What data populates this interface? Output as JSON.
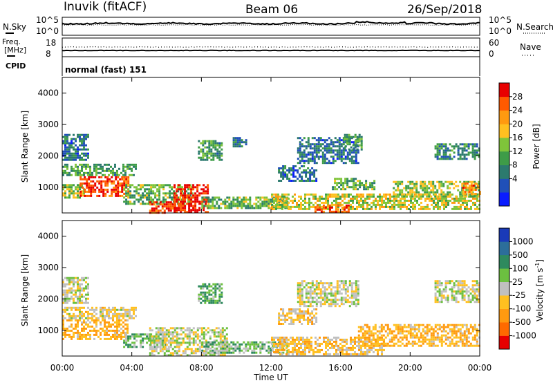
{
  "header": {
    "station": "Inuvik (fitACF)",
    "beam": "Beam 06",
    "date": "26/Sep/2018"
  },
  "top_panel": {
    "left_label": "N.Sky",
    "right_label": "N.Search",
    "left_ticks": [
      "10^5",
      "10^0"
    ],
    "right_ticks": [
      "10^5",
      "10^0"
    ]
  },
  "freq_panel": {
    "left_label_1": "Freq.",
    "left_label_2": "[MHz]",
    "right_label": "Nave",
    "left_ticks": [
      "18",
      "8"
    ],
    "right_ticks": [
      "60",
      "0"
    ],
    "cpid_label": "CPID",
    "cpid_value": "normal (fast) 151"
  },
  "x_axis": {
    "ticks": [
      "00:00",
      "04:00",
      "08:00",
      "12:00",
      "16:00",
      "20:00",
      "00:00"
    ],
    "label": "Time UT"
  },
  "y_axis": {
    "label": "Slant Range [km]",
    "ticks": [
      "4000",
      "3000",
      "2000",
      "1000"
    ]
  },
  "power_colorbar": {
    "label": "Power [dB]",
    "ticks": [
      "28",
      "24",
      "20",
      "16",
      "12",
      "8",
      "4"
    ],
    "colors": [
      "#0a1cff",
      "#2050b8",
      "#2c7a6e",
      "#3e9c48",
      "#7fc43a",
      "#ffc020",
      "#ff9a10",
      "#ff5a00",
      "#e80000"
    ]
  },
  "velocity_colorbar": {
    "label": "Velocity [m s",
    "label_superscript": "-1",
    "label_close": "]",
    "ticks": [
      "1000",
      "500",
      "100",
      "25",
      "-25",
      "-100",
      "-500",
      "-1000"
    ],
    "colors": [
      "#1a3ab8",
      "#2c6e9a",
      "#2e8a5e",
      "#6cc040",
      "#c0c0c0",
      "#ffc020",
      "#ff9a10",
      "#ff6a00",
      "#e80000"
    ]
  },
  "chart_data": [
    {
      "type": "heatmap",
      "title": "Power [dB]",
      "xlabel": "Time UT",
      "ylabel": "Slant Range [km]",
      "xlim": [
        0,
        24
      ],
      "ylim": [
        180,
        4500
      ],
      "clim": [
        0,
        32
      ],
      "echo_regions": [
        {
          "t": [
            0.0,
            1.2
          ],
          "r": [
            700,
            1100
          ],
          "value": 16
        },
        {
          "t": [
            1.0,
            3.8
          ],
          "r": [
            750,
            1350
          ],
          "value": 28
        },
        {
          "t": [
            0.0,
            4.2
          ],
          "r": [
            1400,
            1750
          ],
          "value": 12
        },
        {
          "t": [
            0.0,
            1.5
          ],
          "r": [
            1900,
            2700
          ],
          "value": 8
        },
        {
          "t": [
            3.5,
            7.5
          ],
          "r": [
            500,
            1100
          ],
          "value": 14
        },
        {
          "t": [
            5.0,
            6.5
          ],
          "r": [
            200,
            550
          ],
          "value": 28
        },
        {
          "t": [
            6.4,
            8.4
          ],
          "r": [
            200,
            1100
          ],
          "value": 30
        },
        {
          "t": [
            8.0,
            13.0
          ],
          "r": [
            350,
            700
          ],
          "value": 14
        },
        {
          "t": [
            7.8,
            9.2
          ],
          "r": [
            1900,
            2500
          ],
          "value": 12
        },
        {
          "t": [
            9.8,
            10.6
          ],
          "r": [
            2300,
            2600
          ],
          "value": 8
        },
        {
          "t": [
            12.4,
            14.6
          ],
          "r": [
            1200,
            1700
          ],
          "value": 8
        },
        {
          "t": [
            13.5,
            17.0
          ],
          "r": [
            1750,
            2600
          ],
          "value": 8
        },
        {
          "t": [
            16.2,
            17.2
          ],
          "r": [
            2200,
            2700
          ],
          "value": 12
        },
        {
          "t": [
            15.5,
            18.0
          ],
          "r": [
            950,
            1300
          ],
          "value": 14
        },
        {
          "t": [
            12.0,
            24.0
          ],
          "r": [
            300,
            800
          ],
          "value": 18
        },
        {
          "t": [
            14.5,
            16.5
          ],
          "r": [
            200,
            450
          ],
          "value": 28
        },
        {
          "t": [
            19.0,
            24.0
          ],
          "r": [
            700,
            1200
          ],
          "value": 16
        },
        {
          "t": [
            21.4,
            24.0
          ],
          "r": [
            1900,
            2400
          ],
          "value": 10
        },
        {
          "t": [
            23.0,
            24.0
          ],
          "r": [
            800,
            1150
          ],
          "value": 24
        }
      ]
    },
    {
      "type": "heatmap",
      "title": "Velocity [m s-1]",
      "xlabel": "Time UT",
      "ylabel": "Slant Range [km]",
      "xlim": [
        0,
        24
      ],
      "ylim": [
        180,
        4500
      ],
      "clim": [
        -1000,
        1000
      ],
      "echo_regions": [
        {
          "t": [
            0.0,
            3.8
          ],
          "r": [
            750,
            1350
          ],
          "value": -300
        },
        {
          "t": [
            0.0,
            4.2
          ],
          "r": [
            1400,
            1750
          ],
          "value": -100
        },
        {
          "t": [
            0.0,
            1.5
          ],
          "r": [
            1900,
            2700
          ],
          "value": 0
        },
        {
          "t": [
            3.5,
            6.0
          ],
          "r": [
            500,
            900
          ],
          "value": 200
        },
        {
          "t": [
            5.0,
            9.5
          ],
          "r": [
            200,
            1100
          ],
          "value": 0
        },
        {
          "t": [
            8.0,
            13.0
          ],
          "r": [
            300,
            650
          ],
          "value": 200
        },
        {
          "t": [
            7.8,
            9.2
          ],
          "r": [
            1900,
            2500
          ],
          "value": 300
        },
        {
          "t": [
            12.4,
            14.6
          ],
          "r": [
            1200,
            1700
          ],
          "value": -150
        },
        {
          "t": [
            13.5,
            17.0
          ],
          "r": [
            1750,
            2600
          ],
          "value": 0
        },
        {
          "t": [
            12.0,
            18.5
          ],
          "r": [
            250,
            800
          ],
          "value": -200
        },
        {
          "t": [
            17.0,
            24.0
          ],
          "r": [
            500,
            1200
          ],
          "value": -300
        },
        {
          "t": [
            21.4,
            24.0
          ],
          "r": [
            1900,
            2600
          ],
          "value": 0
        }
      ]
    }
  ]
}
